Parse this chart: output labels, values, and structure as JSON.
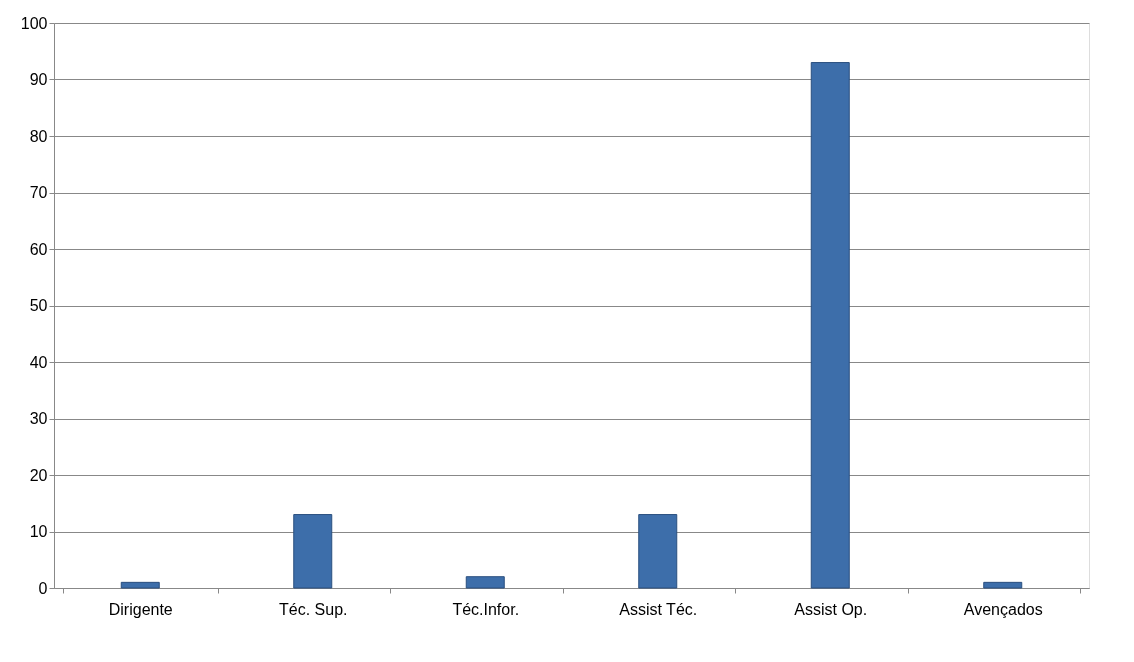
{
  "chart_data": {
    "type": "bar",
    "categories": [
      "Dirigente",
      "Téc. Sup.",
      "Téc.Infor.",
      "Assist Téc.",
      "Assist Op.",
      "Avençados"
    ],
    "values": [
      1,
      13,
      2,
      13,
      93,
      1
    ],
    "color": "#3d6eaa",
    "ylim": [
      0,
      100
    ],
    "yticks": [
      0,
      10,
      20,
      30,
      40,
      50,
      60,
      70,
      80,
      90,
      100
    ],
    "grid": "y"
  }
}
